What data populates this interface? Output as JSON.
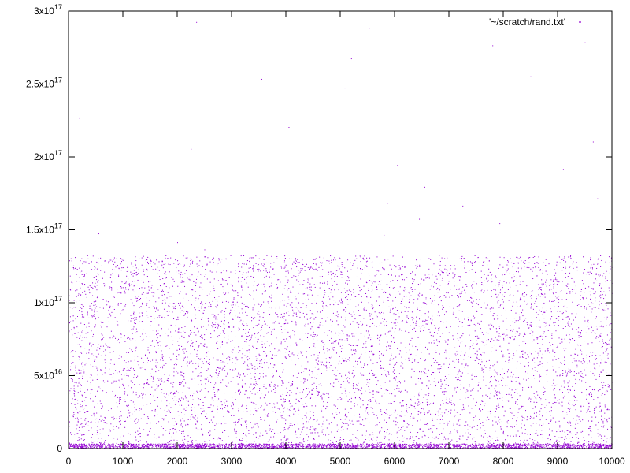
{
  "chart_data": {
    "type": "scatter",
    "title": "",
    "xlabel": "",
    "ylabel": "",
    "xlim": [
      0,
      10000
    ],
    "ylim": [
      0,
      300000000000000000
    ],
    "grid": false,
    "legend_position": "top-right",
    "x_ticks": [
      {
        "value": 0,
        "label": "0"
      },
      {
        "value": 1000,
        "label": "1000"
      },
      {
        "value": 2000,
        "label": "2000"
      },
      {
        "value": 3000,
        "label": "3000"
      },
      {
        "value": 4000,
        "label": "4000"
      },
      {
        "value": 5000,
        "label": "5000"
      },
      {
        "value": 6000,
        "label": "6000"
      },
      {
        "value": 7000,
        "label": "7000"
      },
      {
        "value": 8000,
        "label": "8000"
      },
      {
        "value": 9000,
        "label": "9000"
      },
      {
        "value": 10000,
        "label": "10000"
      }
    ],
    "y_ticks": [
      {
        "value": 0,
        "mantissa": "0",
        "exponent": ""
      },
      {
        "value": 50000000000000000,
        "mantissa": "5x10",
        "exponent": "16"
      },
      {
        "value": 100000000000000000,
        "mantissa": "1x10",
        "exponent": "17"
      },
      {
        "value": 150000000000000000,
        "mantissa": "1.5x10",
        "exponent": "17"
      },
      {
        "value": 200000000000000000,
        "mantissa": "2x10",
        "exponent": "17"
      },
      {
        "value": 250000000000000000,
        "mantissa": "2.5x10",
        "exponent": "17"
      },
      {
        "value": 300000000000000000,
        "mantissa": "3x10",
        "exponent": "17"
      }
    ],
    "series": [
      {
        "name": "'~/scratch/rand.txt'",
        "color": "#9400d3",
        "marker": "dot",
        "description_points": [
          [
            2350,
            292000000000000000
          ],
          [
            5530,
            288000000000000000
          ],
          [
            9500,
            278000000000000000
          ],
          [
            7800,
            276000000000000000
          ],
          [
            5200,
            267000000000000000
          ],
          [
            8500,
            255000000000000000
          ],
          [
            3550,
            253000000000000000
          ],
          [
            5080,
            247000000000000000
          ],
          [
            3000,
            245000000000000000
          ],
          [
            200,
            226000000000000000
          ],
          [
            4050,
            220000000000000000
          ],
          [
            9650,
            210000000000000000
          ],
          [
            2250,
            205000000000000000
          ],
          [
            6050,
            194000000000000000
          ],
          [
            9100,
            191000000000000000
          ],
          [
            6550,
            179000000000000000
          ],
          [
            5870,
            168000000000000000
          ],
          [
            7250,
            166000000000000000
          ],
          [
            9730,
            171000000000000000
          ],
          [
            6450,
            157000000000000000
          ],
          [
            7930,
            154000000000000000
          ],
          [
            550,
            147000000000000000
          ],
          [
            5800,
            146000000000000000
          ],
          [
            2000,
            141000000000000000
          ],
          [
            2500,
            136000000000000000
          ],
          [
            8350,
            140000000000000000
          ]
        ],
        "dense_band": {
          "x_min": 0,
          "x_max": 10000,
          "y_min": 0,
          "y_max": 132000000000000000,
          "count": 6500
        },
        "baseline_band": {
          "x_min": 0,
          "x_max": 10000,
          "y_min": 0,
          "y_max": 3000000000000000,
          "count": 2500
        }
      }
    ]
  }
}
